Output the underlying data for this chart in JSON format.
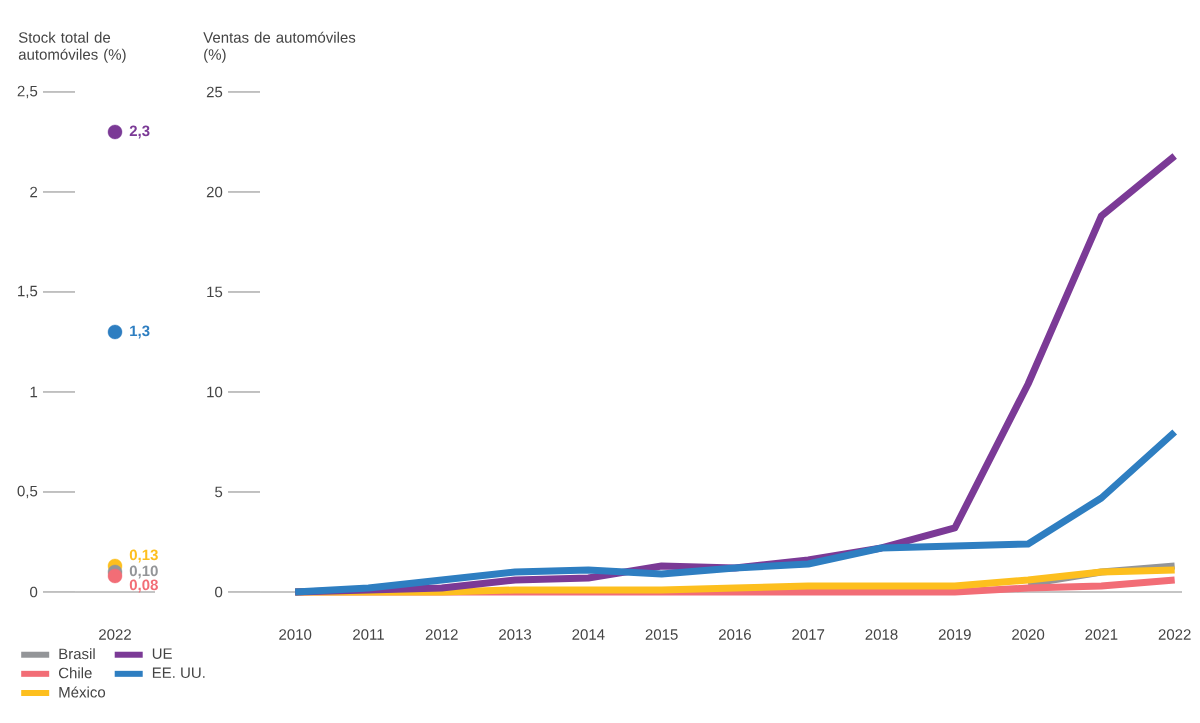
{
  "chart_data": [
    {
      "type": "scatter",
      "ylabel": "Stock total de automóviles (%)",
      "categories": [
        "2022"
      ],
      "ylim": [
        0,
        2.5
      ],
      "yticks": [
        {
          "value": 0,
          "label": "0"
        },
        {
          "value": 0.5,
          "label": "0,5"
        },
        {
          "value": 1,
          "label": "1"
        },
        {
          "value": 1.5,
          "label": "1,5"
        },
        {
          "value": 2,
          "label": "2"
        },
        {
          "value": 2.5,
          "label": "2,5"
        }
      ],
      "series": [
        {
          "color": "#7b3a96",
          "values": [
            2.3
          ],
          "value_labels": [
            "2,3"
          ]
        },
        {
          "color": "#2e7ec1",
          "values": [
            1.3
          ],
          "value_labels": [
            "1,3"
          ]
        },
        {
          "color": "#fdbf1e",
          "values": [
            0.13
          ],
          "value_labels": [
            "0,13"
          ]
        },
        {
          "color": "#939598",
          "values": [
            0.1
          ],
          "value_labels": [
            "0,10"
          ]
        },
        {
          "color": "#f26d76",
          "values": [
            0.08
          ],
          "value_labels": [
            "0,08"
          ]
        }
      ]
    },
    {
      "type": "line",
      "ylabel": "Ventas de automóviles (%)",
      "categories": [
        "2010",
        "2011",
        "2012",
        "2013",
        "2014",
        "2015",
        "2016",
        "2017",
        "2018",
        "2019",
        "2020",
        "2021",
        "2022"
      ],
      "ylim": [
        0,
        25
      ],
      "yticks": [
        0,
        5,
        10,
        15,
        20,
        25
      ],
      "legend": "bottom",
      "line_style": "solid",
      "series": [
        {
          "name": "Brasil",
          "color": "#939598",
          "values": [
            null,
            null,
            null,
            null,
            null,
            null,
            null,
            null,
            null,
            null,
            0.4,
            1.0,
            1.3
          ]
        },
        {
          "name": "Chile",
          "color": "#f26d76",
          "values": [
            0,
            0,
            0,
            0,
            0,
            0,
            0,
            0,
            0,
            0,
            0.2,
            0.3,
            0.6
          ]
        },
        {
          "name": "México",
          "color": "#fdbf1e",
          "values": [
            0,
            0,
            0,
            0.1,
            0.1,
            0.1,
            0.2,
            0.3,
            0.3,
            0.3,
            0.6,
            1.0,
            1.1
          ]
        },
        {
          "name": "UE",
          "color": "#7b3a96",
          "values": [
            0,
            0.1,
            0.2,
            0.6,
            0.7,
            1.3,
            1.2,
            1.6,
            2.2,
            3.2,
            10.4,
            18.8,
            21.8
          ]
        },
        {
          "name": "EE. UU.",
          "color": "#2e7ec1",
          "values": [
            0,
            0.2,
            0.6,
            1.0,
            1.1,
            0.9,
            1.2,
            1.4,
            2.2,
            2.3,
            2.4,
            4.7,
            8.0
          ]
        }
      ]
    }
  ]
}
